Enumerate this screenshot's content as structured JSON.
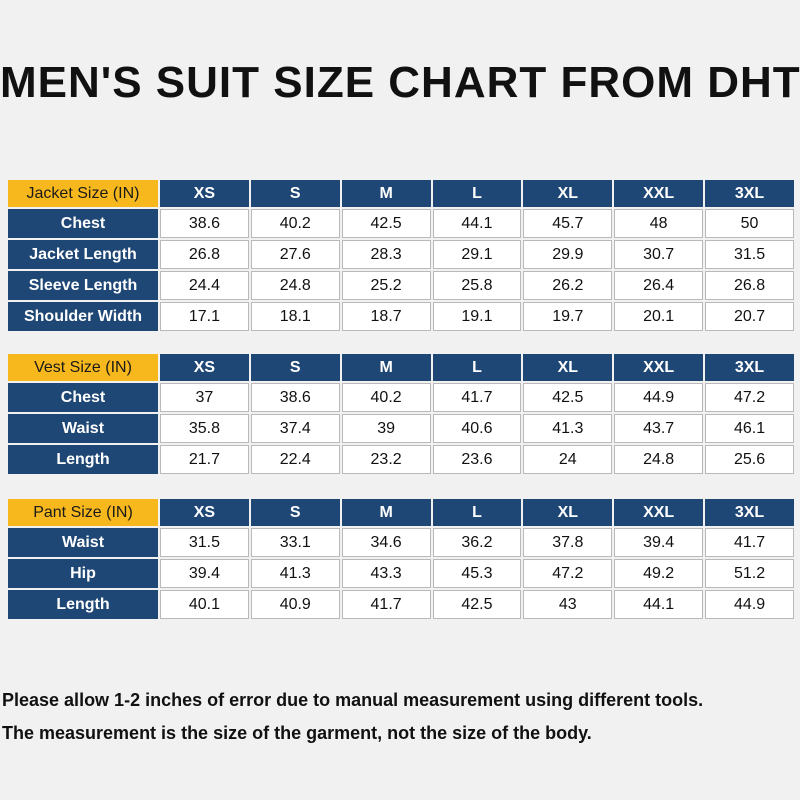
{
  "title": "MEN'S SUIT SIZE CHART FROM DHTS",
  "colors": {
    "header_bg": "#1f4775",
    "corner_bg": "#f7b81e",
    "cell_bg": "#ffffff"
  },
  "tables": [
    {
      "corner": "Jacket Size  (IN)",
      "sizes": [
        "XS",
        "S",
        "M",
        "L",
        "XL",
        "XXL",
        "3XL"
      ],
      "rows": [
        {
          "label": "Chest",
          "values": [
            "38.6",
            "40.2",
            "42.5",
            "44.1",
            "45.7",
            "48",
            "50"
          ]
        },
        {
          "label": "Jacket Length",
          "values": [
            "26.8",
            "27.6",
            "28.3",
            "29.1",
            "29.9",
            "30.7",
            "31.5"
          ]
        },
        {
          "label": "Sleeve Length",
          "values": [
            "24.4",
            "24.8",
            "25.2",
            "25.8",
            "26.2",
            "26.4",
            "26.8"
          ]
        },
        {
          "label": "Shoulder Width",
          "values": [
            "17.1",
            "18.1",
            "18.7",
            "19.1",
            "19.7",
            "20.1",
            "20.7"
          ]
        }
      ]
    },
    {
      "corner": "Vest Size  (IN)",
      "sizes": [
        "XS",
        "S",
        "M",
        "L",
        "XL",
        "XXL",
        "3XL"
      ],
      "rows": [
        {
          "label": "Chest",
          "values": [
            "37",
            "38.6",
            "40.2",
            "41.7",
            "42.5",
            "44.9",
            "47.2"
          ]
        },
        {
          "label": "Waist",
          "values": [
            "35.8",
            "37.4",
            "39",
            "40.6",
            "41.3",
            "43.7",
            "46.1"
          ]
        },
        {
          "label": "Length",
          "values": [
            "21.7",
            "22.4",
            "23.2",
            "23.6",
            "24",
            "24.8",
            "25.6"
          ]
        }
      ]
    },
    {
      "corner": "Pant Size  (IN)",
      "sizes": [
        "XS",
        "S",
        "M",
        "L",
        "XL",
        "XXL",
        "3XL"
      ],
      "rows": [
        {
          "label": "Waist",
          "values": [
            "31.5",
            "33.1",
            "34.6",
            "36.2",
            "37.8",
            "39.4",
            "41.7"
          ]
        },
        {
          "label": "Hip",
          "values": [
            "39.4",
            "41.3",
            "43.3",
            "45.3",
            "47.2",
            "49.2",
            "51.2"
          ]
        },
        {
          "label": "Length",
          "values": [
            "40.1",
            "40.9",
            "41.7",
            "42.5",
            "43",
            "44.1",
            "44.9"
          ]
        }
      ]
    }
  ],
  "notes": [
    "Please allow 1-2 inches of error due to manual measurement using different tools.",
    "The measurement is the size of the garment, not the size of the body."
  ]
}
